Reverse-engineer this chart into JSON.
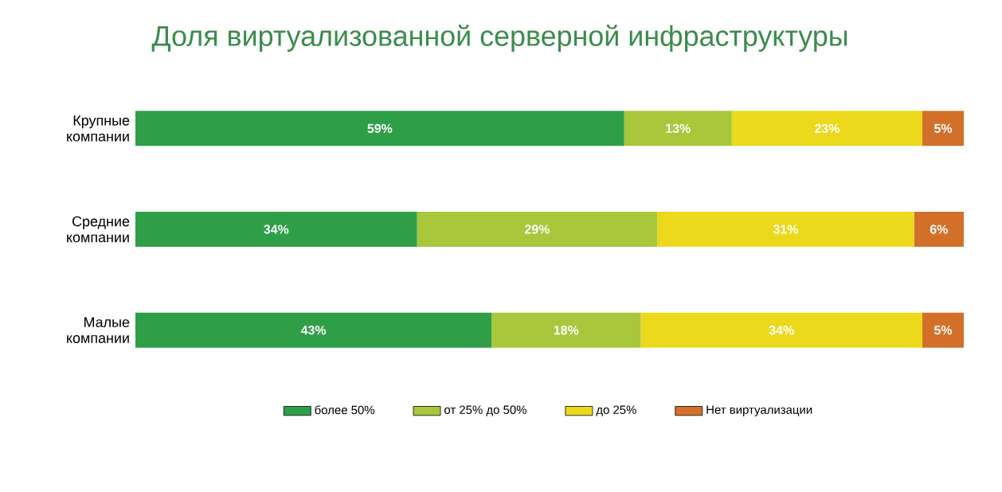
{
  "chart_data": {
    "type": "bar",
    "orientation": "horizontal",
    "stacked": true,
    "title": "Доля виртуализованной серверной инфраструктуры",
    "categories": [
      "Крупные компании",
      "Средние компании",
      "Малые компании"
    ],
    "tick_labels": "y",
    "legend": "bottom",
    "series": [
      {
        "name": "более 50%",
        "color": "#2e9f47",
        "values": [
          59,
          34,
          43
        ],
        "value_labels": [
          "59%",
          "34%",
          "43%"
        ]
      },
      {
        "name": "от 25% до 50%",
        "color": "#a9c73b",
        "values": [
          13,
          29,
          18
        ],
        "value_labels": [
          "13%",
          "29%",
          "18%"
        ]
      },
      {
        "name": "до 25%",
        "color": "#ecd91c",
        "values": [
          23,
          31,
          34
        ],
        "value_labels": [
          "23%",
          "31%",
          "34%"
        ]
      },
      {
        "name": "Нет виртуализации",
        "color": "#d2702a",
        "values": [
          5,
          6,
          5
        ],
        "value_labels": [
          "5%",
          "6%",
          "5%"
        ]
      }
    ]
  }
}
